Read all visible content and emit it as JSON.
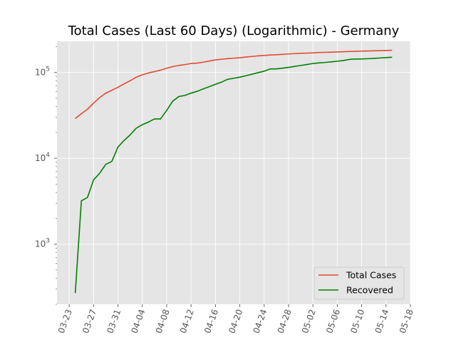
{
  "chart_data": {
    "type": "line",
    "title": "Total Cases (Last 60 Days) (Logarithmic) - Germany",
    "xlabel": "",
    "ylabel": "",
    "y_scale": "log",
    "ylim": [
      200,
      230000
    ],
    "xlim": [
      "2020-03-21",
      "2020-05-18"
    ],
    "x_ticks": [
      "03-23",
      "03-27",
      "03-31",
      "04-04",
      "04-08",
      "04-12",
      "04-16",
      "04-20",
      "04-24",
      "04-28",
      "05-02",
      "05-06",
      "05-10",
      "05-14",
      "05-18"
    ],
    "x_tick_values": [
      "2020-03-23",
      "2020-03-27",
      "2020-03-31",
      "2020-04-04",
      "2020-04-08",
      "2020-04-12",
      "2020-04-16",
      "2020-04-20",
      "2020-04-24",
      "2020-04-28",
      "2020-05-02",
      "2020-05-06",
      "2020-05-10",
      "2020-05-14",
      "2020-05-18"
    ],
    "y_ticks": [
      {
        "value": 1000,
        "label_base": "10",
        "label_exp": "3"
      },
      {
        "value": 10000,
        "label_base": "10",
        "label_exp": "4"
      },
      {
        "value": 100000,
        "label_base": "10",
        "label_exp": "5"
      }
    ],
    "grid": true,
    "legend_position": "lower-right",
    "x": [
      "2020-03-24",
      "2020-03-25",
      "2020-03-26",
      "2020-03-27",
      "2020-03-28",
      "2020-03-29",
      "2020-03-30",
      "2020-03-31",
      "2020-04-01",
      "2020-04-02",
      "2020-04-03",
      "2020-04-04",
      "2020-04-05",
      "2020-04-06",
      "2020-04-07",
      "2020-04-08",
      "2020-04-09",
      "2020-04-10",
      "2020-04-11",
      "2020-04-12",
      "2020-04-13",
      "2020-04-14",
      "2020-04-15",
      "2020-04-16",
      "2020-04-17",
      "2020-04-18",
      "2020-04-19",
      "2020-04-20",
      "2020-04-21",
      "2020-04-22",
      "2020-04-23",
      "2020-04-24",
      "2020-04-25",
      "2020-04-26",
      "2020-04-27",
      "2020-04-28",
      "2020-04-29",
      "2020-04-30",
      "2020-05-01",
      "2020-05-02",
      "2020-05-03",
      "2020-05-04",
      "2020-05-05",
      "2020-05-06",
      "2020-05-07",
      "2020-05-08",
      "2020-05-09",
      "2020-05-10",
      "2020-05-11",
      "2020-05-12",
      "2020-05-13",
      "2020-05-14",
      "2020-05-15"
    ],
    "series": [
      {
        "name": "Total Cases",
        "color": "#E24A33",
        "values": [
          29000,
          33000,
          37300,
          43900,
          50900,
          57300,
          61900,
          67000,
          73500,
          80000,
          87800,
          93800,
          98400,
          102300,
          106200,
          111800,
          116800,
          120500,
          123300,
          126900,
          128300,
          131600,
          135600,
          139800,
          142300,
          144500,
          146500,
          148000,
          150800,
          153300,
          155800,
          157600,
          159400,
          160600,
          162000,
          163900,
          165400,
          166700,
          167800,
          168900,
          170300,
          171100,
          172100,
          173000,
          174000,
          175200,
          175900,
          176900,
          177500,
          178300,
          179200,
          180200,
          181200
        ]
      },
      {
        "name": "Recovered",
        "color": "#008000",
        "values": [
          270,
          3200,
          3500,
          5600,
          6700,
          8500,
          9200,
          13500,
          16100,
          18700,
          22400,
          24600,
          26400,
          28700,
          28700,
          36100,
          46300,
          52400,
          54000,
          57400,
          60200,
          64300,
          68200,
          72600,
          77000,
          83100,
          85400,
          88000,
          91500,
          95200,
          99400,
          103300,
          109800,
          109800,
          112000,
          114500,
          117400,
          120400,
          123500,
          126900,
          129000,
          130600,
          132700,
          135100,
          137400,
          141700,
          143300,
          143300,
          144400,
          145600,
          147200,
          148700,
          150300
        ]
      }
    ]
  }
}
